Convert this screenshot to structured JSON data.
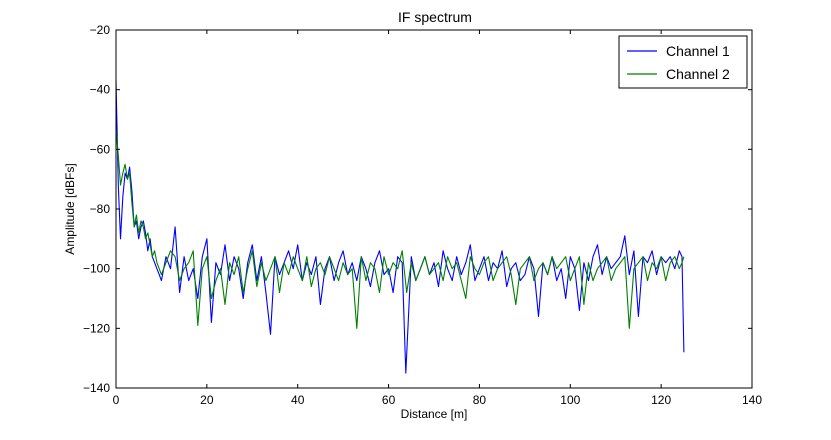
{
  "chart_data": {
    "type": "line",
    "title": "IF spectrum",
    "xlabel": "Distance [m]",
    "ylabel": "Amplitude [dBFs]",
    "xlim": [
      0,
      140
    ],
    "ylim": [
      -140,
      -20
    ],
    "xticks": [
      0,
      20,
      40,
      60,
      80,
      100,
      120,
      140
    ],
    "yticks": [
      -140,
      -120,
      -100,
      -80,
      -60,
      -40,
      -20
    ],
    "grid": false,
    "legend": "top-right",
    "series": [
      {
        "name": "Channel 1",
        "color": "#0000ff",
        "x": [
          0,
          0.5,
          1,
          1.5,
          2,
          2.5,
          3,
          3.5,
          4,
          4.5,
          5,
          5.5,
          6,
          6.5,
          7,
          7.5,
          8,
          8.5,
          9,
          9.5,
          10,
          11,
          12,
          13,
          14,
          15,
          16,
          17,
          18,
          19,
          20,
          21,
          22,
          23,
          24,
          25,
          26,
          27,
          28,
          29,
          30,
          31,
          32,
          33,
          34,
          35,
          36,
          37,
          38,
          39,
          40,
          41,
          42,
          43,
          44,
          45,
          46,
          47,
          48,
          49,
          50,
          51,
          52,
          53,
          54,
          55,
          56,
          57,
          58,
          59,
          60,
          61,
          62,
          63,
          63.8,
          65,
          66,
          67,
          68,
          69,
          70,
          71,
          72,
          73,
          74,
          75,
          76,
          77,
          78,
          79,
          80,
          81,
          82,
          83,
          84,
          85,
          86,
          87,
          88,
          89,
          90,
          91,
          92,
          93,
          94,
          95,
          96,
          97,
          98,
          99,
          100,
          101,
          102,
          103,
          104,
          105,
          106,
          107,
          108,
          109,
          110,
          111,
          112,
          113,
          114,
          115,
          116,
          117,
          118,
          119,
          120,
          121,
          122,
          123,
          124,
          124.6,
          125
        ],
        "y": [
          -37,
          -72,
          -90,
          -76,
          -68,
          -70,
          -66,
          -74,
          -86,
          -84,
          -90,
          -86,
          -84,
          -88,
          -94,
          -90,
          -96,
          -98,
          -100,
          -102,
          -104,
          -96,
          -100,
          -86,
          -108,
          -96,
          -104,
          -100,
          -110,
          -96,
          -90,
          -118,
          -98,
          -102,
          -92,
          -104,
          -96,
          -100,
          -110,
          -98,
          -92,
          -104,
          -96,
          -108,
          -122,
          -96,
          -102,
          -98,
          -94,
          -100,
          -92,
          -104,
          -98,
          -102,
          -96,
          -112,
          -100,
          -96,
          -104,
          -98,
          -94,
          -102,
          -98,
          -104,
          -96,
          -100,
          -106,
          -98,
          -94,
          -102,
          -100,
          -108,
          -96,
          -98,
          -135,
          -96,
          -104,
          -100,
          -96,
          -102,
          -98,
          -106,
          -94,
          -100,
          -104,
          -96,
          -102,
          -98,
          -92,
          -104,
          -100,
          -96,
          -104,
          -98,
          -100,
          -94,
          -106,
          -100,
          -98,
          -104,
          -102,
          -96,
          -100,
          -116,
          -98,
          -102,
          -96,
          -104,
          -100,
          -110,
          -96,
          -100,
          -114,
          -98,
          -104,
          -96,
          -92,
          -102,
          -96,
          -100,
          -98,
          -96,
          -89,
          -102,
          -94,
          -116,
          -96,
          -98,
          -94,
          -102,
          -96,
          -98,
          -96,
          -100,
          -94,
          -96,
          -128
        ]
      },
      {
        "name": "Channel 2",
        "color": "#008000",
        "x": [
          0,
          0.5,
          1,
          1.5,
          2,
          2.5,
          3,
          3.5,
          4,
          4.5,
          5,
          5.5,
          6,
          6.5,
          7,
          7.5,
          8,
          8.5,
          9,
          9.5,
          10,
          11,
          12,
          13,
          14,
          15,
          16,
          17,
          18,
          19,
          20,
          21,
          22,
          23,
          24,
          25,
          26,
          27,
          28,
          29,
          30,
          31,
          32,
          33,
          34,
          35,
          36,
          37,
          38,
          39,
          40,
          41,
          42,
          43,
          44,
          45,
          46,
          47,
          48,
          49,
          50,
          51,
          52,
          53,
          54,
          55,
          56,
          57,
          58,
          59,
          60,
          61,
          62,
          63,
          64,
          65,
          66,
          67,
          68,
          69,
          70,
          71,
          72,
          73,
          74,
          75,
          76,
          77,
          78,
          79,
          80,
          81,
          82,
          83,
          84,
          85,
          86,
          87,
          88,
          89,
          90,
          91,
          92,
          93,
          94,
          95,
          96,
          97,
          98,
          99,
          100,
          101,
          102,
          103,
          104,
          105,
          106,
          107,
          108,
          109,
          110,
          111,
          112,
          113,
          114,
          115,
          116,
          117,
          118,
          119,
          120,
          121,
          122,
          123,
          124,
          124.6,
          125
        ],
        "y": [
          -53,
          -62,
          -72,
          -68,
          -65,
          -70,
          -68,
          -78,
          -86,
          -82,
          -88,
          -84,
          -86,
          -90,
          -88,
          -92,
          -96,
          -94,
          -98,
          -100,
          -102,
          -98,
          -94,
          -96,
          -104,
          -100,
          -98,
          -94,
          -119,
          -100,
          -96,
          -110,
          -104,
          -100,
          -112,
          -98,
          -102,
          -96,
          -108,
          -100,
          -94,
          -106,
          -98,
          -104,
          -100,
          -96,
          -108,
          -98,
          -102,
          -96,
          -100,
          -104,
          -96,
          -106,
          -100,
          -98,
          -102,
          -96,
          -100,
          -104,
          -98,
          -102,
          -100,
          -120,
          -96,
          -104,
          -98,
          -100,
          -108,
          -96,
          -102,
          -98,
          -100,
          -94,
          -108,
          -98,
          -104,
          -100,
          -96,
          -102,
          -100,
          -98,
          -104,
          -96,
          -100,
          -98,
          -104,
          -110,
          -96,
          -100,
          -102,
          -98,
          -96,
          -104,
          -100,
          -98,
          -96,
          -102,
          -112,
          -100,
          -98,
          -96,
          -104,
          -100,
          -98,
          -102,
          -96,
          -100,
          -98,
          -96,
          -104,
          -100,
          -96,
          -112,
          -98,
          -104,
          -100,
          -98,
          -96,
          -104,
          -100,
          -98,
          -96,
          -120,
          -100,
          -98,
          -96,
          -104,
          -98,
          -100,
          -96,
          -104,
          -98,
          -96,
          -100,
          -98,
          -96
        ]
      }
    ]
  }
}
